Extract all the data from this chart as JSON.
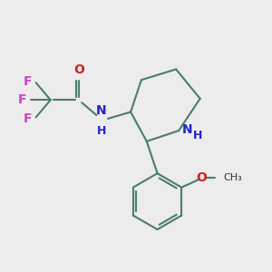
{
  "bg_color": "#ececec",
  "bond_color": "#4a7c6f",
  "bond_width": 1.5,
  "N_color": "#2222cc",
  "O_color": "#cc2222",
  "F_color": "#cc44cc",
  "font_size": 10,
  "small_font_size": 9,
  "xlim": [
    0,
    10
  ],
  "ylim": [
    0,
    10
  ]
}
